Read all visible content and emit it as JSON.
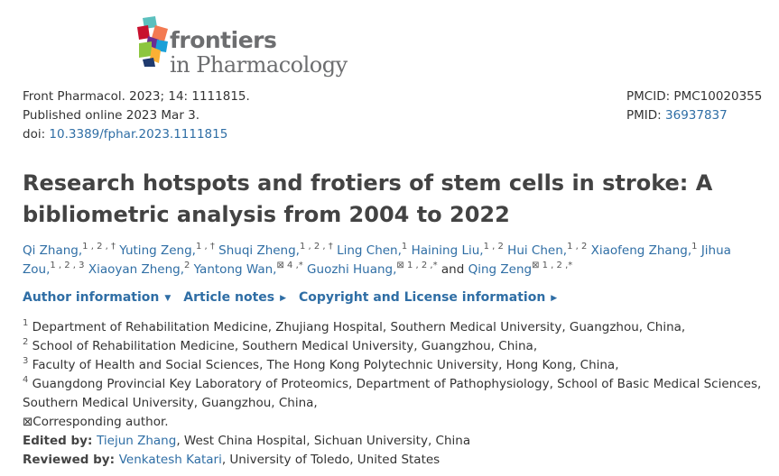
{
  "logo": {
    "line1": "frontiers",
    "line2": "in Pharmacology"
  },
  "citation": {
    "journal": "Front Pharmacol. 2023; 14: 1111815.",
    "published": "Published online 2023 Mar 3.",
    "doi_label": "doi: ",
    "doi": "10.3389/fphar.2023.1111815"
  },
  "ids": {
    "pmcid": "PMCID: PMC10020355",
    "pmid_label": "PMID: ",
    "pmid": "36937837"
  },
  "title": "Research hotspots and frotiers of stem cells in stroke: A bibliometric analysis from 2004 to 2022",
  "authors": [
    {
      "name": "Qi Zhang,",
      "sup": "1 , 2 , †"
    },
    {
      "name": "Yuting Zeng,",
      "sup": "1 , †"
    },
    {
      "name": "Shuqi Zheng,",
      "sup": "1 , 2 , †"
    },
    {
      "name": "Ling Chen,",
      "sup": "1"
    },
    {
      "name": "Haining Liu,",
      "sup": "1 , 2"
    },
    {
      "name": "Hui Chen,",
      "sup": "1 , 2"
    },
    {
      "name": "Xiaofeng Zhang,",
      "sup": "1"
    },
    {
      "name": "Jihua Zou,",
      "sup": "1 , 2 , 3"
    },
    {
      "name": "Xiaoyan Zheng,",
      "sup": "2"
    },
    {
      "name": "Yantong Wan,",
      "sup": "⊠ 4 ,*"
    },
    {
      "name": "Guozhi Huang,",
      "sup": "⊠ 1 , 2 ,*"
    },
    {
      "pre": "and ",
      "name": "Qing Zeng",
      "sup": "⊠ 1 , 2 ,*"
    }
  ],
  "tabs": [
    "Author information",
    "Article notes",
    "Copyright and License information"
  ],
  "affiliations": [
    {
      "sup": "1",
      "text": " Department of Rehabilitation Medicine, Zhujiang Hospital, Southern Medical University, Guangzhou, China,"
    },
    {
      "sup": "2",
      "text": " School of Rehabilitation Medicine, Southern Medical University, Guangzhou, China,"
    },
    {
      "sup": "3",
      "text": " Faculty of Health and Social Sciences, The Hong Kong Polytechnic University, Hong Kong, China,"
    },
    {
      "sup": "4",
      "text": " Guangdong Provincial Key Laboratory of Proteomics, Department of Pathophysiology, School of Basic Medical Sciences, Southern Medical University, Guangzhou, China,"
    }
  ],
  "corresponding": "⊠Corresponding author.",
  "edited": {
    "label": "Edited by: ",
    "name": "Tiejun Zhang",
    "rest": ", West China Hospital, Sichuan University, China"
  },
  "reviewed": {
    "label": "Reviewed by: ",
    "name": "Venkatesh Katari",
    "rest": ", University of Toledo, United States"
  }
}
